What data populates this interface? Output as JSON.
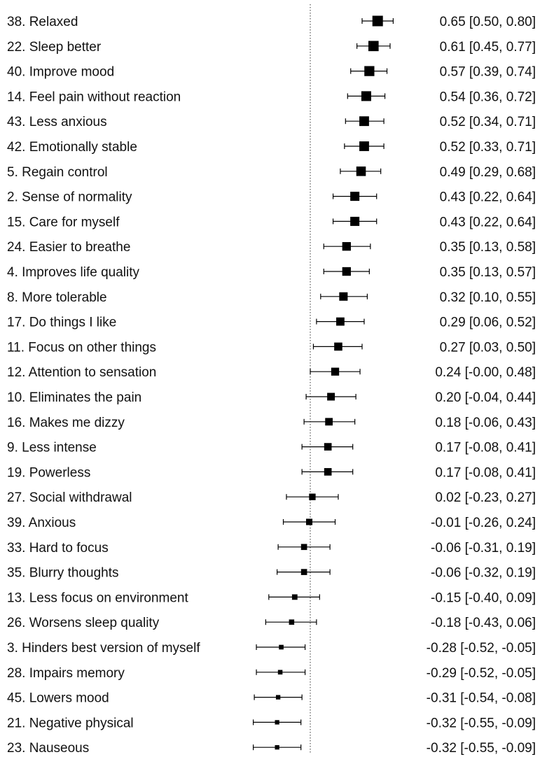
{
  "chart_data": {
    "type": "forest",
    "reference_line": 0,
    "reference_line_style": "dotted",
    "xlim": [
      -0.52,
      0.85
    ],
    "rows": [
      {
        "label": "38. Relaxed",
        "estimate": 0.65,
        "lower": 0.5,
        "upper": 0.8,
        "ci_text": "0.65 [0.50, 0.80]"
      },
      {
        "label": "22. Sleep better",
        "estimate": 0.61,
        "lower": 0.45,
        "upper": 0.77,
        "ci_text": "0.61 [0.45, 0.77]"
      },
      {
        "label": "40. Improve mood",
        "estimate": 0.57,
        "lower": 0.39,
        "upper": 0.74,
        "ci_text": "0.57 [0.39, 0.74]"
      },
      {
        "label": "14. Feel pain without reaction",
        "estimate": 0.54,
        "lower": 0.36,
        "upper": 0.72,
        "ci_text": "0.54 [0.36, 0.72]"
      },
      {
        "label": "43. Less anxious",
        "estimate": 0.52,
        "lower": 0.34,
        "upper": 0.71,
        "ci_text": "0.52 [0.34, 0.71]"
      },
      {
        "label": "42. Emotionally stable",
        "estimate": 0.52,
        "lower": 0.33,
        "upper": 0.71,
        "ci_text": "0.52 [0.33, 0.71]"
      },
      {
        "label": "5. Regain control",
        "estimate": 0.49,
        "lower": 0.29,
        "upper": 0.68,
        "ci_text": "0.49 [0.29, 0.68]"
      },
      {
        "label": "2. Sense of normality",
        "estimate": 0.43,
        "lower": 0.22,
        "upper": 0.64,
        "ci_text": "0.43 [0.22, 0.64]"
      },
      {
        "label": "15. Care for myself",
        "estimate": 0.43,
        "lower": 0.22,
        "upper": 0.64,
        "ci_text": "0.43 [0.22, 0.64]"
      },
      {
        "label": "24. Easier to breathe",
        "estimate": 0.35,
        "lower": 0.13,
        "upper": 0.58,
        "ci_text": "0.35 [0.13, 0.58]"
      },
      {
        "label": "4. Improves life quality",
        "estimate": 0.35,
        "lower": 0.13,
        "upper": 0.57,
        "ci_text": "0.35 [0.13, 0.57]"
      },
      {
        "label": "8. More tolerable",
        "estimate": 0.32,
        "lower": 0.1,
        "upper": 0.55,
        "ci_text": "0.32 [0.10, 0.55]"
      },
      {
        "label": "17. Do things I like",
        "estimate": 0.29,
        "lower": 0.06,
        "upper": 0.52,
        "ci_text": "0.29 [0.06, 0.52]"
      },
      {
        "label": "11. Focus on other things",
        "estimate": 0.27,
        "lower": 0.03,
        "upper": 0.5,
        "ci_text": "0.27 [0.03, 0.50]"
      },
      {
        "label": "12. Attention to sensation",
        "estimate": 0.24,
        "lower": -0.0,
        "upper": 0.48,
        "ci_text": "0.24 [-0.00, 0.48]"
      },
      {
        "label": "10. Eliminates the pain",
        "estimate": 0.2,
        "lower": -0.04,
        "upper": 0.44,
        "ci_text": "0.20 [-0.04, 0.44]"
      },
      {
        "label": "16. Makes me dizzy",
        "estimate": 0.18,
        "lower": -0.06,
        "upper": 0.43,
        "ci_text": "0.18 [-0.06, 0.43]"
      },
      {
        "label": "9. Less intense",
        "estimate": 0.17,
        "lower": -0.08,
        "upper": 0.41,
        "ci_text": "0.17 [-0.08, 0.41]"
      },
      {
        "label": "19. Powerless",
        "estimate": 0.17,
        "lower": -0.08,
        "upper": 0.41,
        "ci_text": "0.17 [-0.08, 0.41]"
      },
      {
        "label": "27. Social withdrawal",
        "estimate": 0.02,
        "lower": -0.23,
        "upper": 0.27,
        "ci_text": "0.02 [-0.23, 0.27]"
      },
      {
        "label": "39. Anxious",
        "estimate": -0.01,
        "lower": -0.26,
        "upper": 0.24,
        "ci_text": "-0.01 [-0.26, 0.24]"
      },
      {
        "label": "33. Hard to focus",
        "estimate": -0.06,
        "lower": -0.31,
        "upper": 0.19,
        "ci_text": "-0.06 [-0.31, 0.19]"
      },
      {
        "label": "35. Blurry thoughts",
        "estimate": -0.06,
        "lower": -0.32,
        "upper": 0.19,
        "ci_text": "-0.06 [-0.32, 0.19]"
      },
      {
        "label": "13. Less focus on environment",
        "estimate": -0.15,
        "lower": -0.4,
        "upper": 0.09,
        "ci_text": "-0.15 [-0.40, 0.09]"
      },
      {
        "label": "26. Worsens sleep quality",
        "estimate": -0.18,
        "lower": -0.43,
        "upper": 0.06,
        "ci_text": "-0.18 [-0.43, 0.06]"
      },
      {
        "label": "3. Hinders best version of myself",
        "estimate": -0.28,
        "lower": -0.52,
        "upper": -0.05,
        "ci_text": "-0.28 [-0.52, -0.05]"
      },
      {
        "label": "28. Impairs memory",
        "estimate": -0.29,
        "lower": -0.52,
        "upper": -0.05,
        "ci_text": "-0.29 [-0.52, -0.05]"
      },
      {
        "label": "45. Lowers mood",
        "estimate": -0.31,
        "lower": -0.54,
        "upper": -0.08,
        "ci_text": "-0.31 [-0.54, -0.08]"
      },
      {
        "label": "21. Negative physical",
        "estimate": -0.32,
        "lower": -0.55,
        "upper": -0.09,
        "ci_text": "-0.32 [-0.55, -0.09]"
      },
      {
        "label": "23. Nauseous",
        "estimate": -0.32,
        "lower": -0.55,
        "upper": -0.09,
        "ci_text": "-0.32 [-0.55, -0.09]"
      }
    ],
    "colors": {
      "marker": "#000000",
      "ref_line": "#555555"
    }
  }
}
